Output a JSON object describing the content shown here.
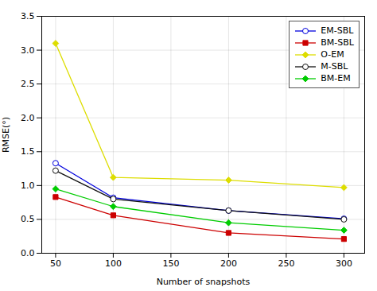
{
  "chart_data": {
    "type": "line",
    "xlabel": "Number of snapshots",
    "ylabel": "RMSE(°)",
    "x": [
      50,
      100,
      200,
      300
    ],
    "series": [
      {
        "name": "EM-SBL",
        "color": "#0000dd",
        "marker": "circle_open",
        "values": [
          1.33,
          0.82,
          0.63,
          0.51
        ]
      },
      {
        "name": "BM-SBL",
        "color": "#cc0000",
        "marker": "square",
        "values": [
          0.83,
          0.56,
          0.3,
          0.21
        ]
      },
      {
        "name": "O-EM",
        "color": "#dddd00",
        "marker": "diamond",
        "values": [
          3.1,
          1.12,
          1.08,
          0.97
        ]
      },
      {
        "name": "M-SBL",
        "color": "#111111",
        "marker": "circle_open",
        "values": [
          1.22,
          0.8,
          0.63,
          0.5
        ]
      },
      {
        "name": "BM-EM",
        "color": "#00cc00",
        "marker": "diamond",
        "values": [
          0.95,
          0.69,
          0.45,
          0.34
        ]
      }
    ],
    "xlim": [
      38,
      318
    ],
    "xticks": [
      50,
      100,
      150,
      200,
      250,
      300
    ],
    "ylim": [
      0,
      3.5
    ],
    "yticks": [
      {
        "value": 0,
        "label": "0.0"
      },
      0.5,
      {
        "value": 1,
        "label": "1.0"
      },
      1.5,
      {
        "value": 2,
        "label": "2.0"
      },
      2.5,
      {
        "value": 3,
        "label": "3.0"
      },
      3.5
    ],
    "grid": true,
    "legend": "upper right"
  }
}
